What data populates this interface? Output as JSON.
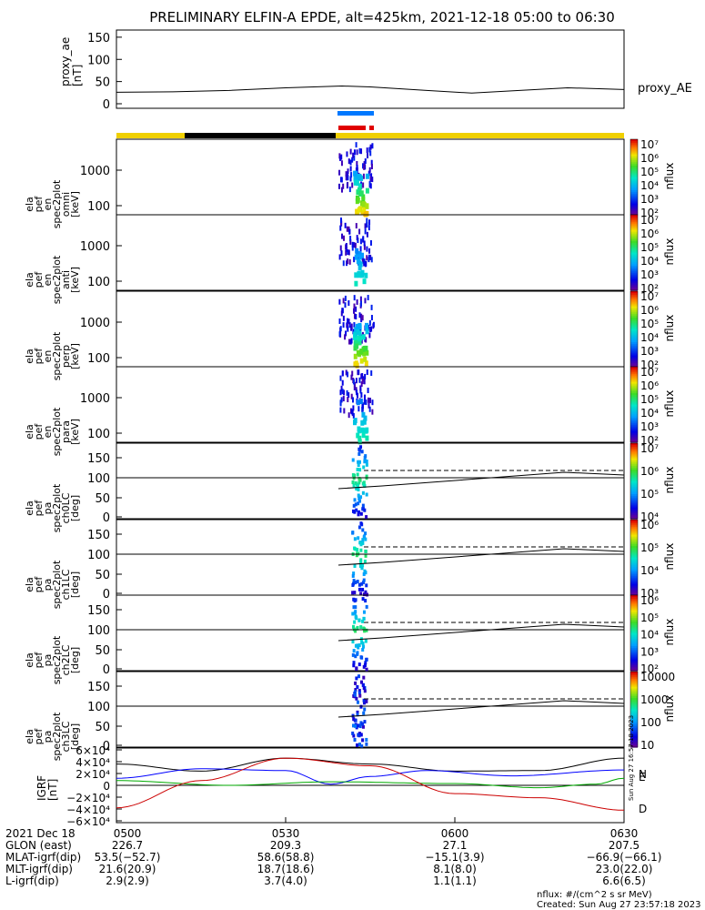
{
  "title": "PRELIMINARY ELFIN-A EPDE, alt=425km, 2021-12-18 05:00 to 06:30",
  "chart_data": {
    "type": "heatmap",
    "proxy_ae": {
      "ylabel": [
        "proxy_ae",
        "[nT]"
      ],
      "yticks": [
        "150",
        "100",
        "50",
        "0"
      ],
      "legend": "proxy_AE",
      "ylim": [
        0,
        160
      ],
      "series": [
        [
          0,
          26
        ],
        [
          10,
          27
        ],
        [
          20,
          30
        ],
        [
          30,
          36
        ],
        [
          40,
          40
        ],
        [
          45,
          38
        ],
        [
          55,
          30
        ],
        [
          63,
          24
        ],
        [
          70,
          29
        ],
        [
          80,
          36
        ],
        [
          90,
          32
        ]
      ]
    },
    "panels": [
      {
        "id": "omni",
        "ylabel": [
          "ela",
          "pef",
          "en",
          "spec2plot",
          "omni",
          "[keV]"
        ],
        "yticks": [
          "1000",
          "100"
        ],
        "cb_ticks": [
          "10⁷",
          "10⁶",
          "10⁵",
          "10⁴",
          "10³",
          "10²"
        ],
        "cb_label": "nflux"
      },
      {
        "id": "anti",
        "ylabel": [
          "ela",
          "pef",
          "en",
          "spec2plot",
          "anti",
          "[keV]"
        ],
        "yticks": [
          "1000",
          "100"
        ],
        "cb_ticks": [
          "10⁷",
          "10⁶",
          "10⁵",
          "10⁴",
          "10³",
          "10²"
        ],
        "cb_label": "nflux"
      },
      {
        "id": "perp",
        "ylabel": [
          "ela",
          "pef",
          "en",
          "spec2plot",
          "perp",
          "[keV]"
        ],
        "yticks": [
          "1000",
          "100"
        ],
        "cb_ticks": [
          "10⁷",
          "10⁶",
          "10⁵",
          "10⁴",
          "10³",
          "10²"
        ],
        "cb_label": "nflux"
      },
      {
        "id": "para",
        "ylabel": [
          "ela",
          "pef",
          "en",
          "spec2plot",
          "para",
          "[keV]"
        ],
        "yticks": [
          "1000",
          "100"
        ],
        "cb_ticks": [
          "10⁷",
          "10⁶",
          "10⁵",
          "10⁴",
          "10³",
          "10²"
        ],
        "cb_label": "nflux"
      },
      {
        "id": "ch0LC",
        "ylabel": [
          "ela",
          "pef",
          "pa",
          "spec2plot",
          "ch0LC",
          "[deg]"
        ],
        "yticks": [
          "150",
          "100",
          "50",
          "0"
        ],
        "cb_ticks": [
          "10⁷",
          "10⁶",
          "10⁵",
          "10⁴"
        ],
        "cb_label": "nflux"
      },
      {
        "id": "ch1LC",
        "ylabel": [
          "ela",
          "pef",
          "pa",
          "spec2plot",
          "ch1LC",
          "[deg]"
        ],
        "yticks": [
          "150",
          "100",
          "50",
          "0"
        ],
        "cb_ticks": [
          "10⁶",
          "10⁵",
          "10⁴",
          "10³"
        ],
        "cb_label": "nflux"
      },
      {
        "id": "ch2LC",
        "ylabel": [
          "ela",
          "pef",
          "pa",
          "spec2plot",
          "ch2LC",
          "[deg]"
        ],
        "yticks": [
          "150",
          "100",
          "50",
          "0"
        ],
        "cb_ticks": [
          "10⁶",
          "10⁵",
          "10⁴",
          "10³",
          "10²"
        ],
        "cb_label": "nflux"
      },
      {
        "id": "ch3LC",
        "ylabel": [
          "ela",
          "pef",
          "pa",
          "spec2plot",
          "ch3LC",
          "[deg]"
        ],
        "yticks": [
          "150",
          "100",
          "50",
          "0"
        ],
        "cb_ticks": [
          "10000",
          "1000",
          "100",
          "10"
        ],
        "cb_label": "nflux"
      }
    ],
    "igrf": {
      "ylabel": [
        "IGRF",
        "[nT]"
      ],
      "yticks": [
        "6×10⁴",
        "4×10⁴",
        "2×10⁴",
        "0",
        "−2×10⁴",
        "−4×10⁴",
        "−6×10⁴"
      ],
      "legend": [
        "N",
        "E",
        "D"
      ],
      "colors": {
        "N": "#000000",
        "E": "#0000ff",
        "D": "#00aa00",
        "R": "#cc0000"
      }
    },
    "xaxis": {
      "row_labels": [
        "2021 Dec 18",
        "GLON (east)",
        "MLAT-igrf(dip)",
        "MLT-igrf(dip)",
        "L-igrf(dip)"
      ],
      "times": [
        "0500",
        "0530",
        "0600",
        "0630"
      ],
      "glon": [
        "226.7",
        "209.3",
        "27.1",
        "207.5"
      ],
      "mlat": [
        "53.5(−52.7)",
        "58.6(58.8)",
        "−15.1(3.9)",
        "−66.9(−66.1)"
      ],
      "mlt": [
        "21.6(20.9)",
        "18.7(18.6)",
        "8.1(8.0)",
        "23.0(22.0)"
      ],
      "lval": [
        "2.9(2.9)",
        "3.7(4.0)",
        "1.1(1.1)",
        "6.6(6.5)"
      ]
    },
    "footer": [
      "nflux: #/(cm^2 s sr MeV)",
      "Created: Sun Aug 27 23:57:18 2023"
    ],
    "side_stamp": "Sun Aug 27 16:57:18 2023"
  },
  "colors": {
    "sunlit": "#f0d000",
    "shadow": "#000000",
    "bar_blue": "#0078ff",
    "bar_red": "#e00000"
  }
}
